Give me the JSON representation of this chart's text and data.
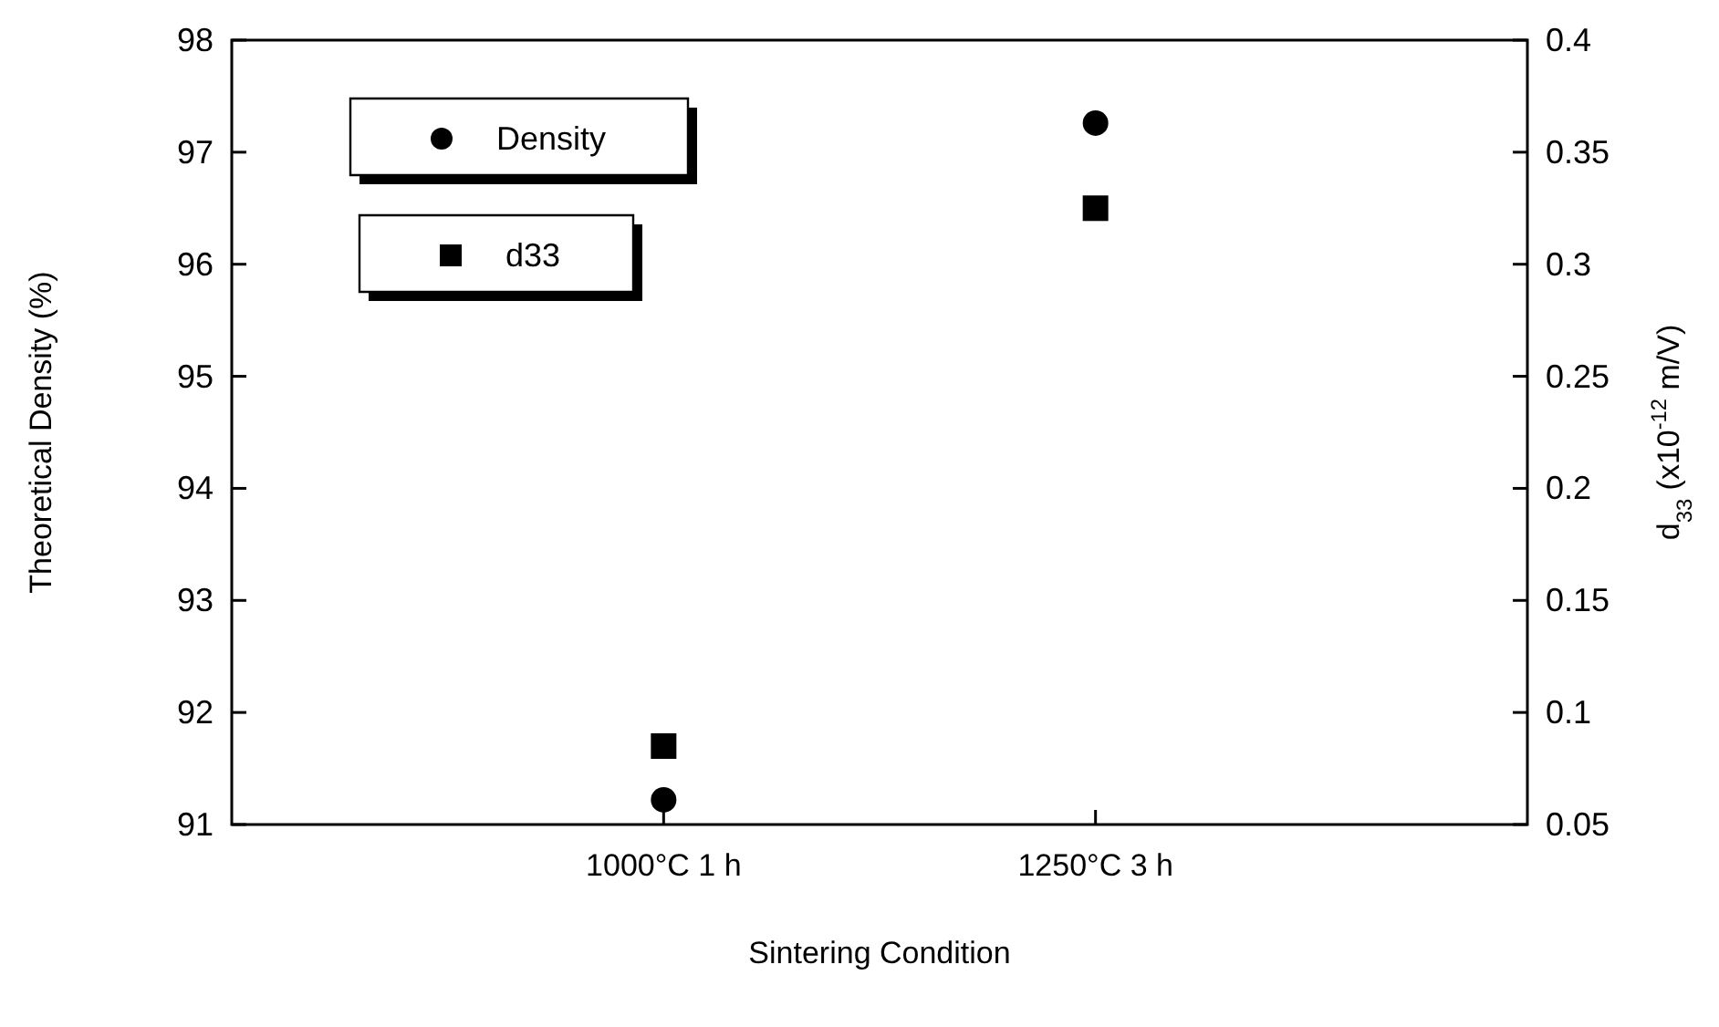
{
  "chart_data": {
    "type": "scatter",
    "xlabel": "Sintering Condition",
    "ylabel": "Theoretical Density (%)",
    "y2label": "d$_{33}$ (x10$^{-12}$ m/V)",
    "categories": [
      "1000°C 1 h",
      "1250°C 3 h"
    ],
    "series": [
      {
        "name": "Density",
        "color": "#000000",
        "marker": "circle",
        "values": [
          91.22,
          97.26
        ]
      },
      {
        "name": "d33",
        "color": "#000000",
        "marker": "square",
        "axis": "y2",
        "values": [
          0.085,
          0.325
        ]
      }
    ],
    "ylim": [
      91,
      98
    ],
    "yticks": [
      91,
      92,
      93,
      94,
      95,
      96,
      97,
      98
    ],
    "y2lim": [
      0.05,
      0.4
    ],
    "y2ticks": [
      0.05,
      0.1,
      0.15,
      0.2,
      0.25,
      0.3,
      0.35,
      0.4
    ],
    "grid": false,
    "legend": "top left"
  }
}
